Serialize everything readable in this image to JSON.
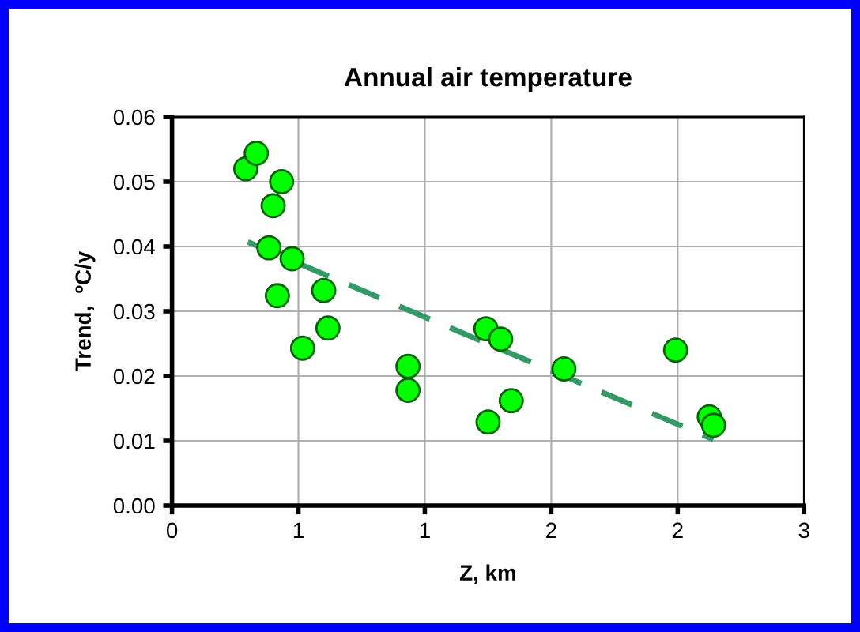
{
  "chart_data": {
    "type": "scatter",
    "title": "Annual air temperature",
    "xlabel": "Z, km",
    "ylabel": "Trend,  ºC/y",
    "xlim": [
      0,
      3
    ],
    "xticks": [
      0,
      {
        "value": 0.6,
        "label": "1"
      },
      {
        "value": 1.2,
        "label": "1"
      },
      {
        "value": 1.8,
        "label": "2"
      },
      {
        "value": 2.4,
        "label": "2"
      },
      3
    ],
    "ylim": [
      0,
      0.06
    ],
    "yticks": [
      {
        "value": 0,
        "label": "0.00"
      },
      {
        "value": 0.01,
        "label": "0.01"
      },
      {
        "value": 0.02,
        "label": "0.02"
      },
      {
        "value": 0.03,
        "label": "0.03"
      },
      {
        "value": 0.04,
        "label": "0.04"
      },
      {
        "value": 0.05,
        "label": "0.05"
      },
      {
        "value": 0.06,
        "label": "0.06"
      }
    ],
    "grid": true,
    "marker": "circle",
    "series": [
      {
        "color": "#00ff00",
        "x": [
          0.35,
          0.4,
          0.52,
          0.48,
          0.46,
          0.57,
          0.5,
          0.72,
          0.74,
          0.62,
          1.12,
          1.12,
          1.49,
          1.56,
          1.61,
          1.5,
          1.86,
          2.39,
          2.55,
          2.57
        ],
        "values": [
          0.052,
          0.0544,
          0.05,
          0.0463,
          0.0398,
          0.0381,
          0.0324,
          0.0332,
          0.0274,
          0.0243,
          0.0215,
          0.0178,
          0.0273,
          0.0257,
          0.0162,
          0.0129,
          0.0211,
          0.024,
          0.0137,
          0.0124
        ]
      },
      {
        "type": "line",
        "color": "#339966",
        "line_style": "dashed",
        "marker": "none",
        "x": [
          0.36,
          2.57
        ],
        "values": [
          0.0407,
          0.0102
        ]
      }
    ]
  }
}
